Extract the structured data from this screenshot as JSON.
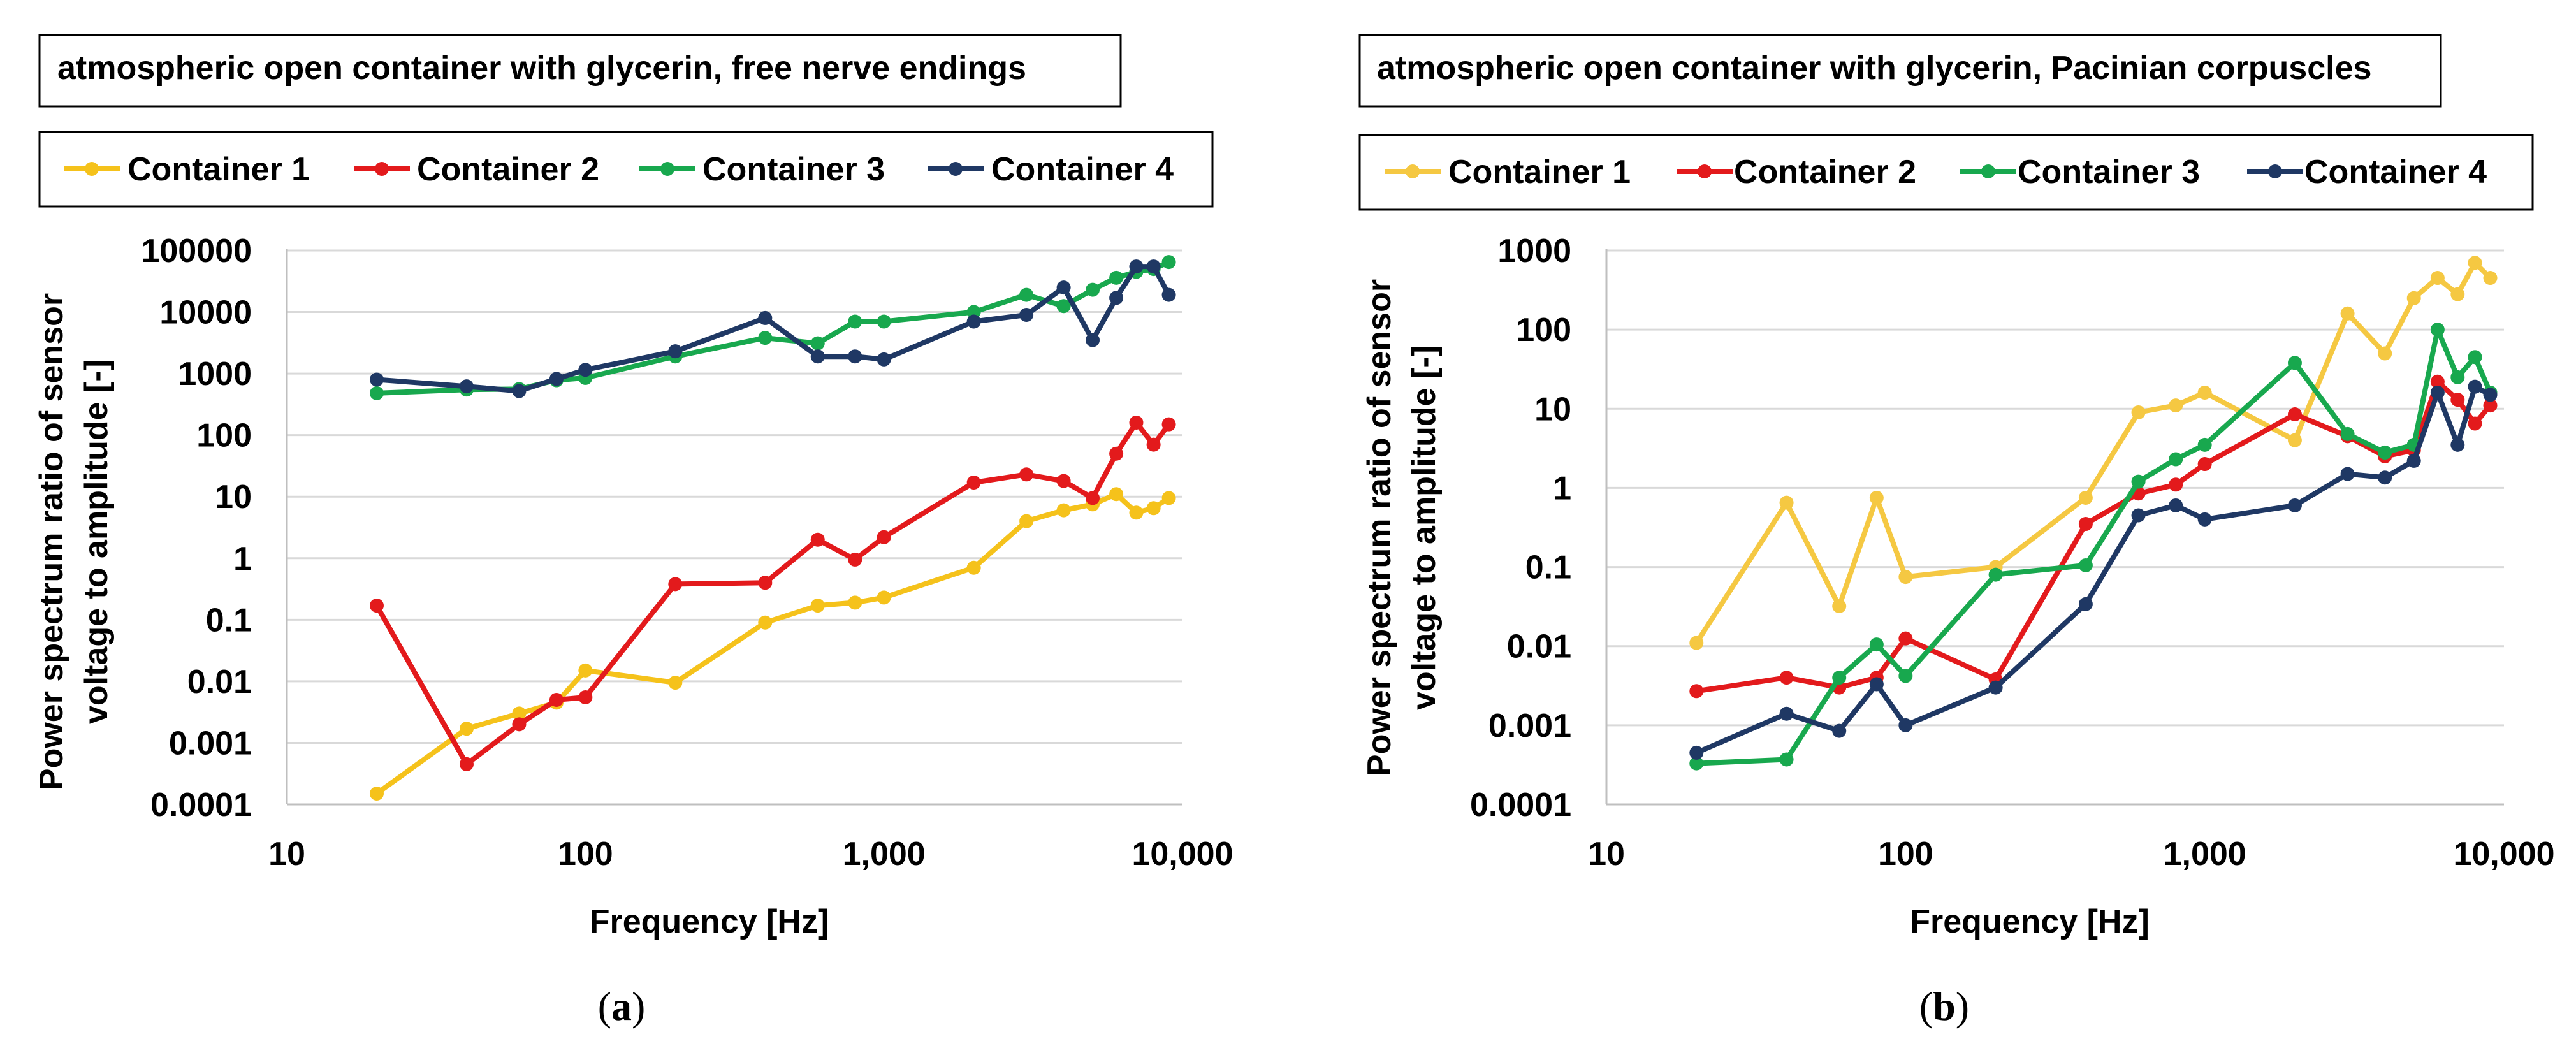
{
  "chart_data": [
    {
      "id": "a",
      "type": "line",
      "title": "atmospheric open container with glycerin, free nerve endings",
      "caption_open": "(",
      "caption_letter": "a",
      "caption_close": ")",
      "xscale": "log",
      "yscale": "log",
      "xlim": [
        10,
        10000
      ],
      "ylim": [
        0.0001,
        100000
      ],
      "xlabel": "Frequency   [Hz]",
      "ylabel_lines": [
        "Power spectrum ratio of sensor",
        "voltage to amplitude [-]"
      ],
      "xticks": [
        10,
        100,
        1000,
        10000
      ],
      "xtick_labels": [
        "10",
        "100",
        "1,000",
        "10,000"
      ],
      "yticks": [
        0.0001,
        0.001,
        0.01,
        0.1,
        1,
        10,
        100,
        1000,
        10000,
        100000
      ],
      "ytick_labels": [
        "0.0001",
        "0.001",
        "0.01",
        "0.1",
        "1",
        "10",
        "100",
        "1000",
        "10000",
        "100000"
      ],
      "grid": "horizontal",
      "legend": "top",
      "series": [
        {
          "name": "Container 1",
          "color": "#f5c21b",
          "x": [
            20,
            40,
            60,
            80,
            100,
            200,
            400,
            600,
            800,
            1000,
            2000,
            3000,
            4000,
            5000,
            6000,
            7000,
            8000,
            9000
          ],
          "y": [
            0.00015,
            0.0017,
            0.003,
            0.0045,
            0.015,
            0.0095,
            0.09,
            0.17,
            0.19,
            0.23,
            0.7,
            4,
            6,
            7.5,
            11,
            5.5,
            6.5,
            9.5
          ]
        },
        {
          "name": "Container 2",
          "color": "#e31a1c",
          "x": [
            20,
            40,
            60,
            80,
            100,
            200,
            400,
            600,
            800,
            1000,
            2000,
            3000,
            4000,
            5000,
            6000,
            7000,
            8000,
            9000
          ],
          "y": [
            0.17,
            0.00045,
            0.002,
            0.005,
            0.0055,
            0.38,
            0.4,
            2,
            0.95,
            2.2,
            17,
            23,
            18,
            9.5,
            50,
            160,
            70,
            150
          ]
        },
        {
          "name": "Container 3",
          "color": "#18a84e",
          "x": [
            20,
            40,
            60,
            80,
            100,
            200,
            400,
            600,
            800,
            1000,
            2000,
            3000,
            4000,
            5000,
            6000,
            7000,
            8000,
            9000
          ],
          "y": [
            480,
            550,
            560,
            780,
            850,
            1900,
            3800,
            3100,
            7000,
            7000,
            10000,
            19000,
            12500,
            23000,
            36000,
            45000,
            50000,
            65000
          ]
        },
        {
          "name": "Container 4",
          "color": "#1f3864",
          "x": [
            20,
            40,
            60,
            80,
            100,
            200,
            400,
            600,
            800,
            1000,
            2000,
            3000,
            4000,
            5000,
            6000,
            7000,
            8000,
            9000
          ],
          "y": [
            800,
            620,
            520,
            820,
            1150,
            2300,
            8000,
            1900,
            1900,
            1700,
            7000,
            9000,
            25000,
            3500,
            17000,
            55000,
            55000,
            19000
          ]
        }
      ]
    },
    {
      "id": "b",
      "type": "line",
      "title": "atmospheric open container with glycerin, Pacinian corpuscles",
      "caption_open": "(",
      "caption_letter": "b",
      "caption_close": ")",
      "xscale": "log",
      "yscale": "log",
      "xlim": [
        10,
        10000
      ],
      "ylim": [
        0.0001,
        1000
      ],
      "xlabel": "Frequency   [Hz]",
      "ylabel_lines": [
        "Power spectrum ratio of sensor",
        "voltage to amplitude [-]"
      ],
      "xticks": [
        10,
        100,
        1000,
        10000
      ],
      "xtick_labels": [
        "10",
        "100",
        "1,000",
        "10,000"
      ],
      "yticks": [
        0.0001,
        0.001,
        0.01,
        0.1,
        1,
        10,
        100,
        1000
      ],
      "ytick_labels": [
        "0.0001",
        "0.001",
        "0.01",
        "0.1",
        "1",
        "10",
        "100",
        "1000"
      ],
      "grid": "horizontal",
      "legend": "top",
      "series": [
        {
          "name": "Container 1",
          "color": "#f5c842",
          "x": [
            20,
            40,
            60,
            80,
            100,
            200,
            400,
            600,
            800,
            1000,
            2000,
            3000,
            4000,
            5000,
            6000,
            7000,
            8000,
            9000
          ],
          "y": [
            0.011,
            0.65,
            0.032,
            0.75,
            0.075,
            0.1,
            0.75,
            9,
            11,
            16,
            4,
            160,
            50,
            250,
            450,
            280,
            700,
            450
          ]
        },
        {
          "name": "Container 2",
          "color": "#e31a1c",
          "x": [
            20,
            40,
            60,
            80,
            100,
            200,
            400,
            600,
            800,
            1000,
            2000,
            3000,
            4000,
            5000,
            6000,
            7000,
            8000,
            9000
          ],
          "y": [
            0.0027,
            0.004,
            0.003,
            0.004,
            0.0125,
            0.0038,
            0.35,
            0.85,
            1.1,
            2,
            8.5,
            4.5,
            2.5,
            3,
            22,
            13,
            6.5,
            11
          ]
        },
        {
          "name": "Container 3",
          "color": "#18a84e",
          "x": [
            20,
            40,
            60,
            80,
            100,
            200,
            400,
            600,
            800,
            1000,
            2000,
            3000,
            4000,
            5000,
            6000,
            7000,
            8000,
            9000
          ],
          "y": [
            0.00033,
            0.00037,
            0.004,
            0.0105,
            0.0042,
            0.08,
            0.105,
            1.2,
            2.3,
            3.5,
            38,
            4.8,
            2.8,
            3.5,
            100,
            25,
            45,
            16
          ]
        },
        {
          "name": "Container 4",
          "color": "#1f3864",
          "x": [
            20,
            40,
            60,
            80,
            100,
            200,
            400,
            600,
            800,
            1000,
            2000,
            3000,
            4000,
            5000,
            6000,
            7000,
            8000,
            9000
          ],
          "y": [
            0.00045,
            0.0014,
            0.00085,
            0.0033,
            0.001,
            0.003,
            0.034,
            0.45,
            0.6,
            0.4,
            0.6,
            1.5,
            1.35,
            2.2,
            16,
            3.5,
            19,
            15
          ]
        }
      ]
    }
  ]
}
